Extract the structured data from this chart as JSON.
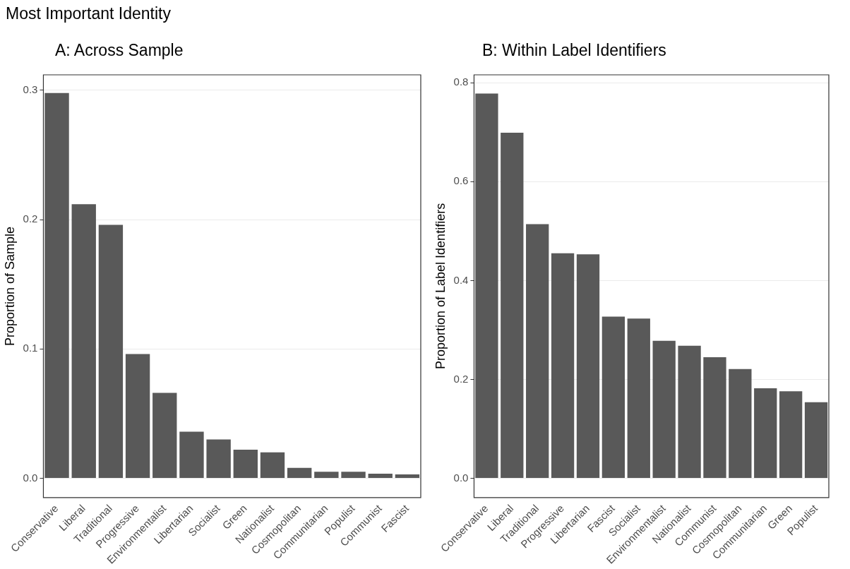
{
  "chart_data": [
    {
      "type": "bar",
      "title": "A: Across Sample",
      "ylabel": "Proportion of Sample",
      "annotations": [
        "Most Important Identity"
      ],
      "categories": [
        "Conservative",
        "Liberal",
        "Traditional",
        "Progressive",
        "Environmentalist",
        "Libertarian",
        "Socialist",
        "Green",
        "Nationalist",
        "Cosmopolitan",
        "Communitarian",
        "Populist",
        "Communist",
        "Fascist"
      ],
      "values": [
        0.298,
        0.212,
        0.196,
        0.096,
        0.066,
        0.036,
        0.03,
        0.022,
        0.02,
        0.008,
        0.005,
        0.005,
        0.0035,
        0.003
      ],
      "color": "#595959",
      "ylim": [
        -0.015,
        0.312
      ],
      "yticks": [
        {
          "value": 0,
          "label": "0.0"
        },
        {
          "value": 0.1,
          "label": "0.1"
        },
        {
          "value": 0.2,
          "label": "0.2"
        },
        {
          "value": 0.3,
          "label": "0.3"
        }
      ],
      "grid": "y"
    },
    {
      "type": "bar",
      "title": "B: Within Label Identifiers",
      "ylabel": "Proportion of Label Identifiers",
      "categories": [
        "Conservative",
        "Liberal",
        "Traditional",
        "Progressive",
        "Libertarian",
        "Fascist",
        "Socialist",
        "Environmentalist",
        "Nationalist",
        "Communist",
        "Cosmopolitan",
        "Communitarian",
        "Green",
        "Populist"
      ],
      "values": [
        0.778,
        0.699,
        0.514,
        0.455,
        0.453,
        0.327,
        0.323,
        0.278,
        0.268,
        0.245,
        0.221,
        0.182,
        0.176,
        0.154
      ],
      "color": "#595959",
      "ylim": [
        -0.039,
        0.816
      ],
      "yticks": [
        {
          "value": 0,
          "label": "0.0"
        },
        {
          "value": 0.2,
          "label": "0.2"
        },
        {
          "value": 0.4,
          "label": "0.4"
        },
        {
          "value": 0.6,
          "label": "0.6"
        },
        {
          "value": 0.8,
          "label": "0.8"
        }
      ],
      "grid": "y"
    }
  ]
}
